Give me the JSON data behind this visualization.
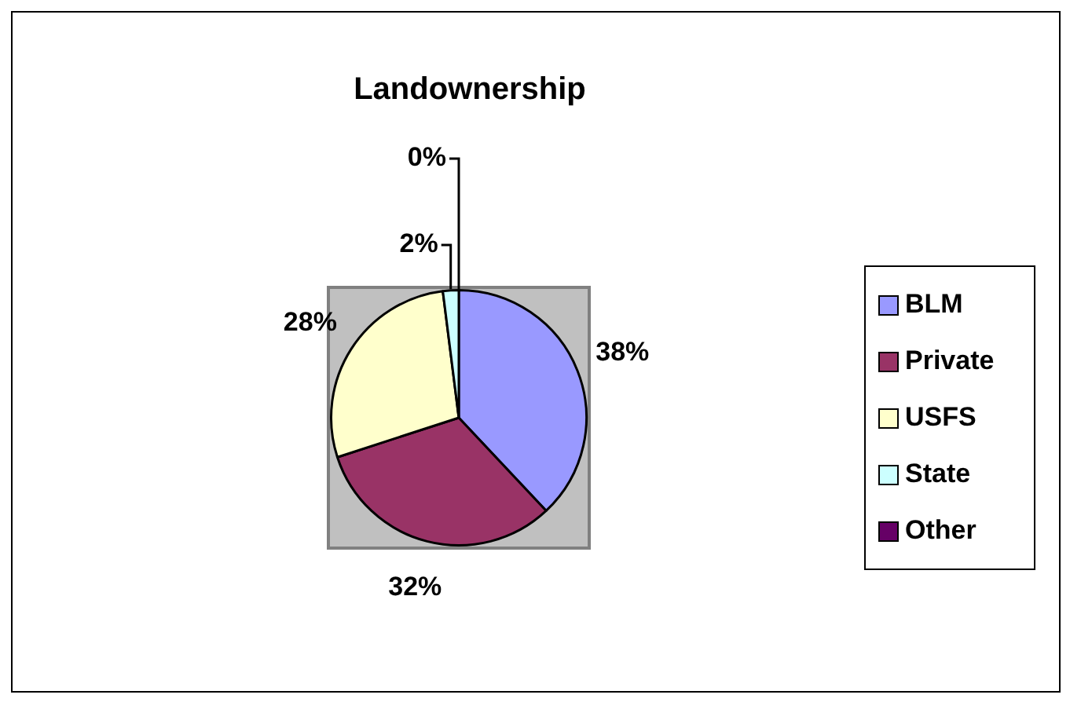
{
  "chart_data": {
    "type": "pie",
    "title": "Landownership",
    "categories": [
      "BLM",
      "Private",
      "USFS",
      "State",
      "Other"
    ],
    "values": [
      38,
      32,
      28,
      2,
      0
    ],
    "colors": [
      "#9999ff",
      "#993366",
      "#ffffcc",
      "#ccffff",
      "#660066"
    ],
    "value_labels": [
      "38%",
      "32%",
      "28%",
      "2%",
      "0%"
    ],
    "legend": "right"
  }
}
